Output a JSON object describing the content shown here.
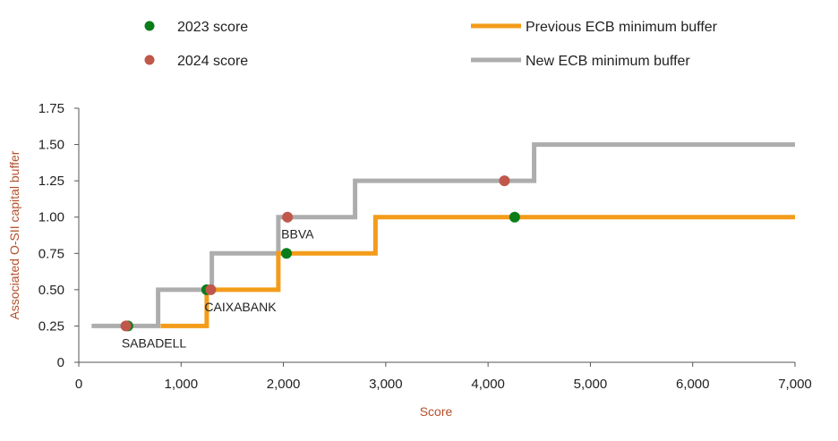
{
  "chart_data": {
    "type": "line",
    "xlabel": "Score",
    "ylabel": "Associated O-SII capital buffer",
    "xlim": [
      0,
      7000
    ],
    "ylim": [
      0,
      1.75
    ],
    "x_ticks": [
      0,
      1000,
      2000,
      3000,
      4000,
      5000,
      6000,
      7000
    ],
    "x_tick_labels": [
      "0",
      "1,000",
      "2,000",
      "3,000",
      "4,000",
      "5,000",
      "6,000",
      "7,000"
    ],
    "y_ticks": [
      0,
      0.25,
      0.5,
      0.75,
      1.0,
      1.25,
      1.5,
      1.75
    ],
    "y_tick_labels": [
      "0",
      "0.25",
      "0.50",
      "0.75",
      "1.00",
      "1.25",
      "1.50",
      "1.75"
    ],
    "grid": false,
    "legend_position": "top",
    "series": [
      {
        "name": "Previous ECB minimum buffer",
        "kind": "step-line",
        "color": "#f39c1a",
        "x": [
          800,
          1250,
          1250,
          1950,
          1950,
          2900,
          2900,
          7000
        ],
        "y": [
          0.25,
          0.25,
          0.5,
          0.5,
          0.75,
          0.75,
          1.0,
          1.0
        ]
      },
      {
        "name": "New ECB minimum buffer",
        "kind": "step-line",
        "color": "#adadad",
        "x": [
          125,
          775,
          775,
          1300,
          1300,
          1950,
          1950,
          2700,
          2700,
          4450,
          4450,
          7000
        ],
        "y": [
          0.25,
          0.25,
          0.5,
          0.5,
          0.75,
          0.75,
          1.0,
          1.0,
          1.25,
          1.25,
          1.5,
          1.5
        ]
      },
      {
        "name": "2023 score",
        "kind": "scatter",
        "color": "#0a7d1a",
        "points": [
          {
            "x": 480,
            "y": 0.25
          },
          {
            "x": 1250,
            "y": 0.5
          },
          {
            "x": 2030,
            "y": 0.75
          },
          {
            "x": 4260,
            "y": 1.0
          }
        ]
      },
      {
        "name": "2024 score",
        "kind": "scatter",
        "color": "#c0574b",
        "points": [
          {
            "x": 460,
            "y": 0.25
          },
          {
            "x": 1290,
            "y": 0.5
          },
          {
            "x": 2040,
            "y": 1.0
          },
          {
            "x": 4160,
            "y": 1.25
          }
        ]
      }
    ],
    "annotations": [
      {
        "text": "SABADELL",
        "x": 480,
        "y": 0.25
      },
      {
        "text": "CAIXABANK",
        "x": 1290,
        "y": 0.5
      },
      {
        "text": "BBVA",
        "x": 2040,
        "y": 1.0
      }
    ]
  }
}
